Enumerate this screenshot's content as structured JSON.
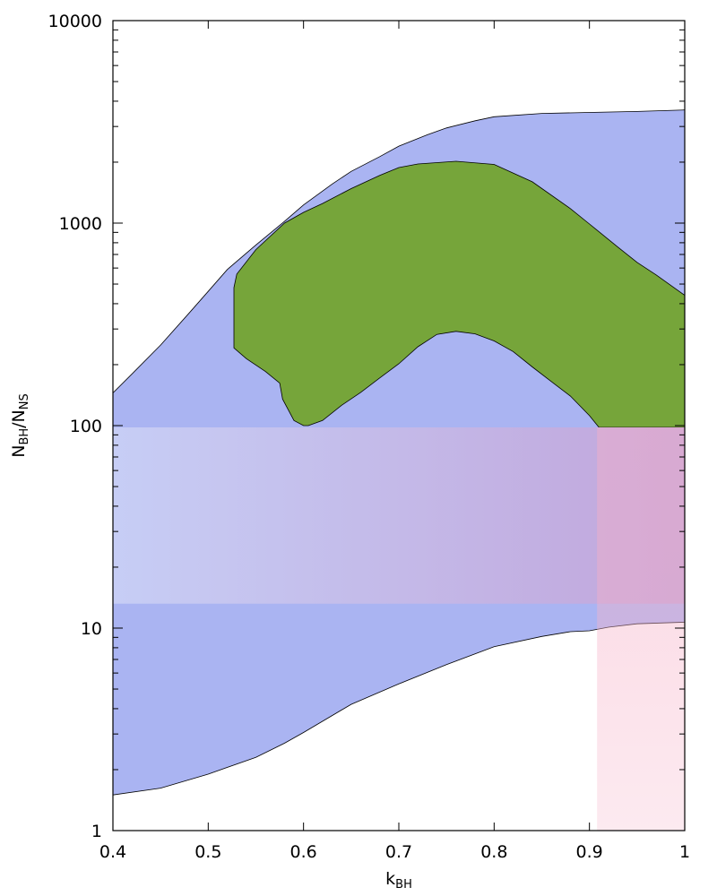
{
  "chart_data": {
    "type": "area",
    "title": "",
    "xlabel": {
      "main": "k",
      "sub": "BH"
    },
    "ylabel": {
      "num": "N",
      "num_sub": "BH",
      "sep": "/",
      "den": "N",
      "den_sub": "NS"
    },
    "x_axis": {
      "scale": "linear",
      "range": [
        0.4,
        1.0
      ],
      "ticks": [
        0.4,
        0.5,
        0.6,
        0.7,
        0.8,
        0.9,
        1.0
      ],
      "tick_labels": [
        "0.4",
        "0.5",
        "0.6",
        "0.7",
        "0.8",
        "0.9",
        "1"
      ]
    },
    "y_axis": {
      "scale": "log",
      "range": [
        1,
        10000
      ],
      "ticks": [
        1,
        10,
        100,
        1000,
        10000
      ],
      "tick_labels": [
        "1",
        "10",
        "100",
        "1000",
        "10000"
      ]
    },
    "grid": false,
    "legend": "none",
    "colors": {
      "blue_region": "#aab4f2",
      "green_region": "#76a53a",
      "band_start": "#cdd3f6",
      "band_end": "#c6a2d6",
      "pink_region": "#f6b3c9",
      "outline": "#000000"
    },
    "regions": [
      {
        "id": "blue-region",
        "upper": [
          [
            0.4,
            145
          ],
          [
            0.42,
            180
          ],
          [
            0.45,
            250
          ],
          [
            0.48,
            360
          ],
          [
            0.5,
            460
          ],
          [
            0.52,
            590
          ],
          [
            0.55,
            780
          ],
          [
            0.58,
            1020
          ],
          [
            0.6,
            1230
          ],
          [
            0.63,
            1560
          ],
          [
            0.65,
            1800
          ],
          [
            0.68,
            2130
          ],
          [
            0.7,
            2400
          ],
          [
            0.73,
            2730
          ],
          [
            0.75,
            2950
          ],
          [
            0.78,
            3200
          ],
          [
            0.8,
            3350
          ],
          [
            0.85,
            3480
          ],
          [
            0.9,
            3520
          ],
          [
            0.95,
            3560
          ],
          [
            1.0,
            3620
          ]
        ],
        "lower": [
          [
            0.4,
            1.5
          ],
          [
            0.45,
            1.62
          ],
          [
            0.5,
            1.9
          ],
          [
            0.55,
            2.3
          ],
          [
            0.58,
            2.7
          ],
          [
            0.6,
            3.05
          ],
          [
            0.65,
            4.2
          ],
          [
            0.7,
            5.3
          ],
          [
            0.75,
            6.6
          ],
          [
            0.8,
            8.1
          ],
          [
            0.85,
            9.1
          ],
          [
            0.88,
            9.6
          ],
          [
            0.9,
            9.7
          ],
          [
            0.92,
            10.1
          ],
          [
            0.95,
            10.5
          ],
          [
            1.0,
            10.7
          ]
        ]
      },
      {
        "id": "green-region",
        "outline": [
          [
            0.527,
            480
          ],
          [
            0.53,
            560
          ],
          [
            0.55,
            740
          ],
          [
            0.58,
            1000
          ],
          [
            0.6,
            1130
          ],
          [
            0.62,
            1250
          ],
          [
            0.65,
            1480
          ],
          [
            0.68,
            1720
          ],
          [
            0.7,
            1880
          ],
          [
            0.72,
            1960
          ],
          [
            0.76,
            2020
          ],
          [
            0.8,
            1950
          ],
          [
            0.84,
            1600
          ],
          [
            0.88,
            1180
          ],
          [
            0.9,
            990
          ],
          [
            0.93,
            760
          ],
          [
            0.95,
            640
          ],
          [
            0.97,
            555
          ],
          [
            1.0,
            440
          ],
          [
            1.0,
            98
          ],
          [
            0.97,
            98
          ],
          [
            0.95,
            98
          ],
          [
            0.93,
            98
          ],
          [
            0.92,
            98
          ],
          [
            0.91,
            98
          ],
          [
            0.9,
            112
          ],
          [
            0.88,
            140
          ],
          [
            0.86,
            165
          ],
          [
            0.84,
            195
          ],
          [
            0.82,
            232
          ],
          [
            0.8,
            262
          ],
          [
            0.78,
            284
          ],
          [
            0.76,
            292
          ],
          [
            0.74,
            282
          ],
          [
            0.72,
            245
          ],
          [
            0.7,
            202
          ],
          [
            0.68,
            172
          ],
          [
            0.66,
            146
          ],
          [
            0.64,
            126
          ],
          [
            0.62,
            106
          ],
          [
            0.605,
            100
          ],
          [
            0.6,
            100
          ],
          [
            0.59,
            106
          ],
          [
            0.578,
            135
          ],
          [
            0.575,
            162
          ],
          [
            0.56,
            185
          ],
          [
            0.54,
            214
          ],
          [
            0.527,
            242
          ]
        ]
      },
      {
        "id": "pink-region",
        "x_range": [
          0.908,
          1.0
        ],
        "y_range": [
          1,
          98
        ]
      },
      {
        "id": "horizontal-band",
        "x_range": [
          0.4,
          1.0
        ],
        "y_range": [
          13.2,
          98
        ]
      }
    ]
  }
}
